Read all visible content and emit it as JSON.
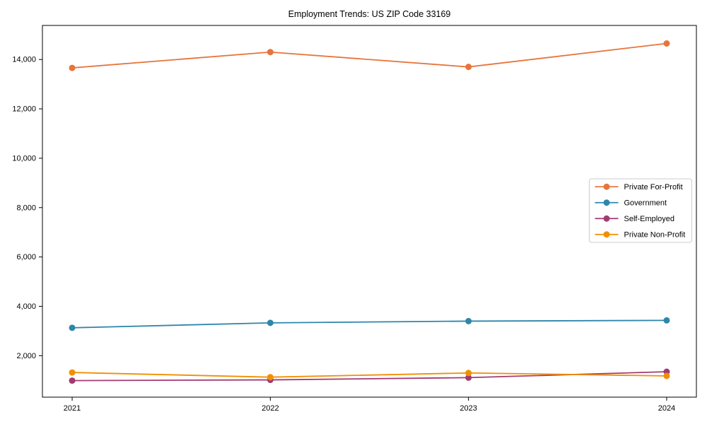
{
  "chart_data": {
    "type": "line",
    "title": "Employment Trends: US ZIP Code 33169",
    "xlabel": "",
    "ylabel": "",
    "grid": false,
    "legend_position": "center right",
    "marker": "circle",
    "x": [
      2021,
      2022,
      2023,
      2024
    ],
    "x_tick_labels": [
      "2021",
      "2022",
      "2023",
      "2024"
    ],
    "y_ticks": [
      2000,
      4000,
      6000,
      8000,
      10000,
      12000,
      14000
    ],
    "y_tick_labels": [
      "2,000",
      "4,000",
      "6,000",
      "8,000",
      "10,000",
      "12,000",
      "14,000"
    ],
    "xlim": [
      2020.85,
      2024.15
    ],
    "ylim": [
      320,
      15380
    ],
    "series": [
      {
        "name": "Private For-Profit",
        "color": "#e8743b",
        "values": [
          13660,
          14300,
          13700,
          14650
        ]
      },
      {
        "name": "Government",
        "color": "#2e86ab",
        "values": [
          3130,
          3330,
          3400,
          3430
        ]
      },
      {
        "name": "Self-Employed",
        "color": "#a23b72",
        "values": [
          990,
          1020,
          1110,
          1350
        ]
      },
      {
        "name": "Private Non-Profit",
        "color": "#f18f01",
        "values": [
          1320,
          1130,
          1300,
          1180
        ]
      }
    ],
    "colors": {
      "spine": "#000000",
      "legend_border": "#cccccc",
      "background": "#ffffff"
    }
  }
}
